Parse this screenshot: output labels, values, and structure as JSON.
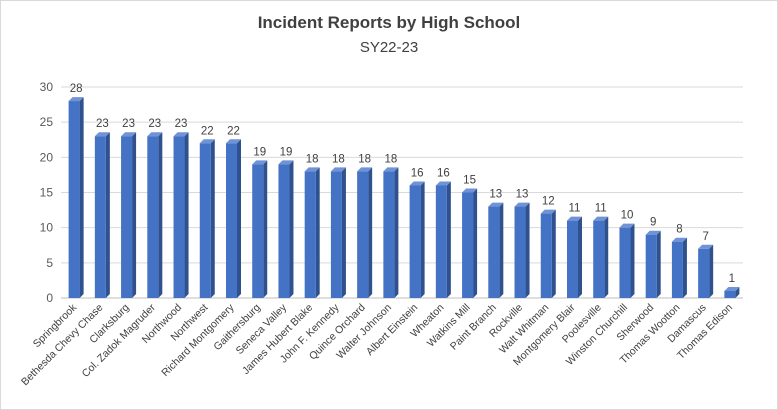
{
  "chart_data": {
    "type": "bar",
    "title": "Incident Reports by High School",
    "subtitle": "SY22-23",
    "xlabel": "",
    "ylabel": "",
    "ylim": [
      0,
      30
    ],
    "yticks": [
      0,
      5,
      10,
      15,
      20,
      25,
      30
    ],
    "grid": true,
    "legend": "none",
    "bar_color": "#4472c4",
    "categories": [
      "Springbrook",
      "Bethesda Chevy Chase",
      "Clarksburg",
      "Col. Zadok Magruder",
      "Northwood",
      "Northwest",
      "Richard Montgomery",
      "Gaithersburg",
      "Seneca Valley",
      "James Hubert Blake",
      "John F. Kennedy",
      "Quince Orchard",
      "Walter Johnson",
      "Albert Einstein",
      "Wheaton",
      "Watkins Mill",
      "Paint Branch",
      "Rockville",
      "Walt Whitman",
      "Montgomery Blair",
      "Poolesville",
      "Winston Churchill",
      "Sherwood",
      "Thomas Wootton",
      "Damascus",
      "Thomas Edison"
    ],
    "values": [
      28,
      23,
      23,
      23,
      23,
      22,
      22,
      19,
      19,
      18,
      18,
      18,
      18,
      16,
      16,
      15,
      13,
      13,
      12,
      11,
      11,
      10,
      9,
      8,
      7,
      1
    ]
  }
}
